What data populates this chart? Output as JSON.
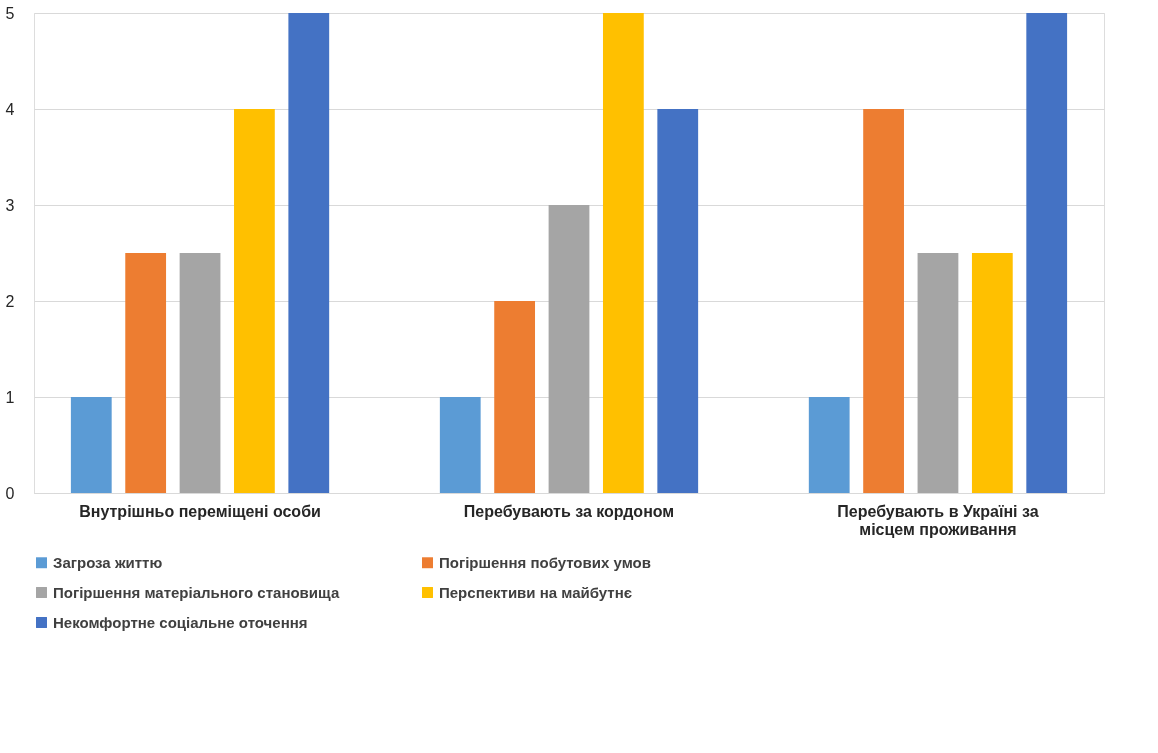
{
  "chart_data": {
    "type": "bar",
    "categories": [
      "Внутрішньо переміщені особи",
      "Перебувають за кордоном",
      "Перебувають в Україні за місцем проживання"
    ],
    "series": [
      {
        "name": "Загроза життю",
        "color": "#5b9bd5",
        "values": [
          1,
          1,
          1
        ]
      },
      {
        "name": "Погіршення побутових умов",
        "color": "#ed7d31",
        "values": [
          2.5,
          2,
          4
        ]
      },
      {
        "name": "Погіршення матеріального становища",
        "color": "#a5a5a5",
        "values": [
          2.5,
          3,
          2.5
        ]
      },
      {
        "name": "Перспективи на майбутнє",
        "color": "#ffc000",
        "values": [
          4,
          5,
          2.5
        ]
      },
      {
        "name": "Некомфортне соціальне оточення",
        "color": "#4472c4",
        "values": [
          5,
          4,
          5
        ]
      }
    ],
    "ylim": [
      0,
      5
    ],
    "yticks": [
      0,
      1,
      2,
      3,
      4,
      5
    ],
    "grid": "y",
    "legend": "bottom"
  }
}
